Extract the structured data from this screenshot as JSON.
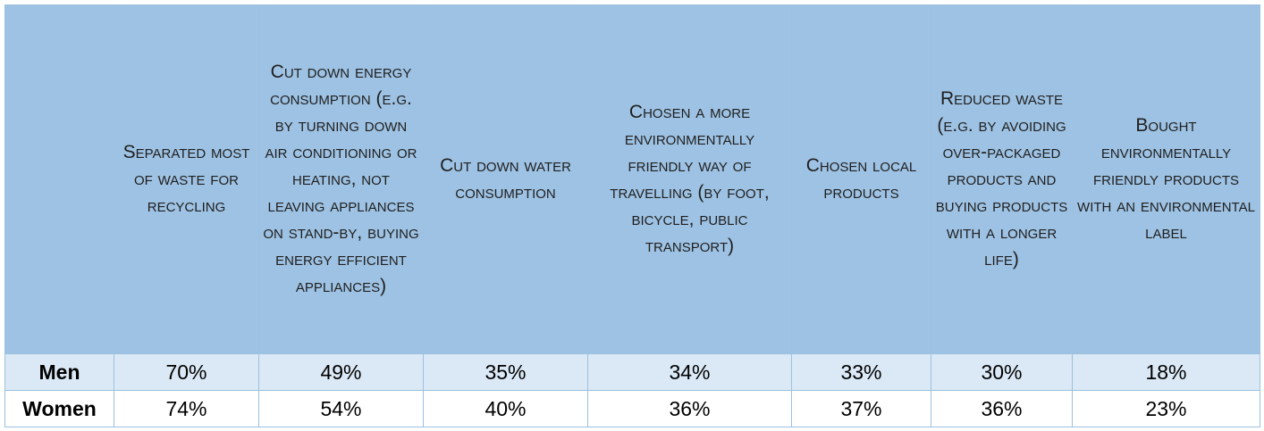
{
  "chart_data": {
    "type": "table",
    "columns": [
      "Separated most of waste for recycling",
      "Cut down energy consumption (e.g. by turning down air conditioning or heating, not leaving appliances on stand-by, buying energy efficient appliances)",
      "Cut down water consumption",
      "Chosen a more environmentally friendly way of travelling (by foot, bicycle, public transport)",
      "Chosen local products",
      "Reduced waste (e.g. by avoiding over-packaged products and buying products with a longer life)",
      "Bought environmentally friendly products with an environmental label"
    ],
    "rows": [
      {
        "label": "Men",
        "values": [
          "70%",
          "49%",
          "35%",
          "34%",
          "33%",
          "30%",
          "18%"
        ]
      },
      {
        "label": "Women",
        "values": [
          "74%",
          "54%",
          "40%",
          "36%",
          "37%",
          "36%",
          "23%"
        ]
      }
    ]
  }
}
